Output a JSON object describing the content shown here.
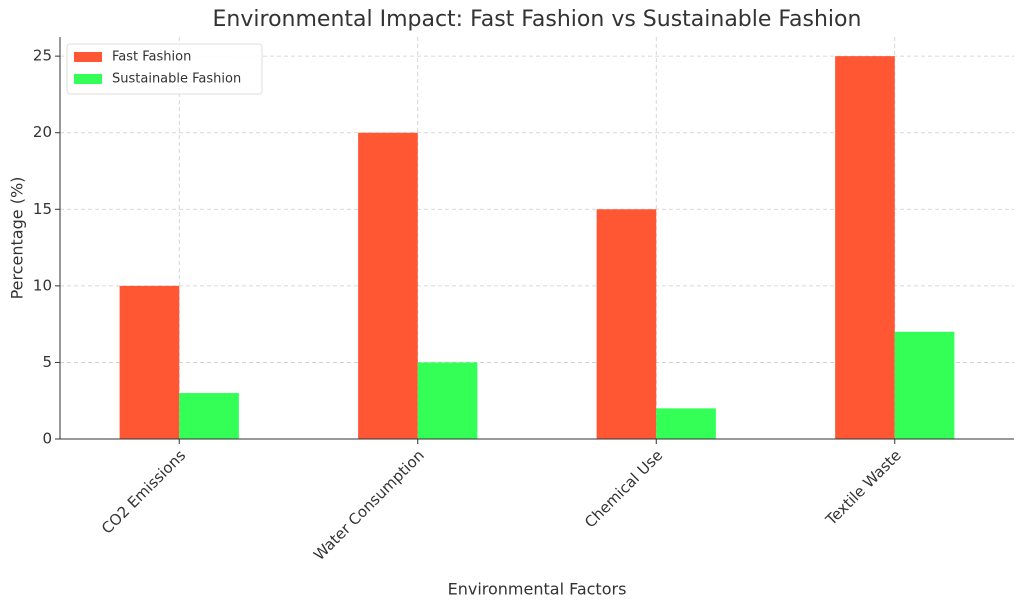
{
  "chart_data": {
    "type": "bar",
    "title": "Environmental Impact: Fast Fashion vs Sustainable Fashion",
    "x_label": "Environmental Factors",
    "y_label": "Percentage (%)",
    "categories": [
      "CO2 Emissions",
      "Water Consumption",
      "Chemical Use",
      "Textile Waste"
    ],
    "series": [
      {
        "name": "Fast Fashion",
        "color": "#ff5733",
        "values": [
          10,
          20,
          15,
          25
        ]
      },
      {
        "name": "Sustainable Fashion",
        "color": "#33ff57",
        "values": [
          3,
          5,
          2,
          7
        ]
      }
    ],
    "ylim": [
      0,
      26.25
    ],
    "yticks": [
      0,
      5,
      10,
      15,
      20,
      25
    ],
    "grid": true,
    "legend": "upper-left"
  }
}
